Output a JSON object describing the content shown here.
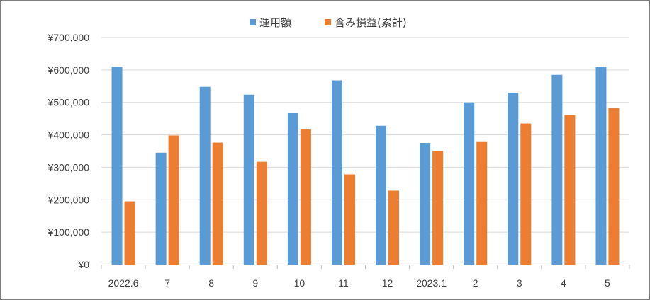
{
  "chart_data": {
    "type": "bar",
    "categories": [
      "2022.6",
      "7",
      "8",
      "9",
      "10",
      "11",
      "12",
      "2023.1",
      "2",
      "3",
      "4",
      "5"
    ],
    "series": [
      {
        "name": "運用額",
        "color": "#5b9bd5",
        "values": [
          610000,
          345000,
          548000,
          524000,
          467000,
          568000,
          428000,
          375000,
          500000,
          530000,
          585000,
          610000
        ]
      },
      {
        "name": "含み損益(累計)",
        "color": "#ed7d31",
        "values": [
          195000,
          398000,
          376000,
          317000,
          417000,
          278000,
          228000,
          350000,
          380000,
          435000,
          461000,
          483000
        ]
      }
    ],
    "ylim": [
      0,
      700000
    ],
    "ytick_step": 100000,
    "ytick_labels": [
      "¥0",
      "¥100,000",
      "¥200,000",
      "¥300,000",
      "¥400,000",
      "¥500,000",
      "¥600,000",
      "¥700,000"
    ],
    "grid": true,
    "legend_position": "top-center",
    "title": "",
    "xlabel": "",
    "ylabel": ""
  }
}
